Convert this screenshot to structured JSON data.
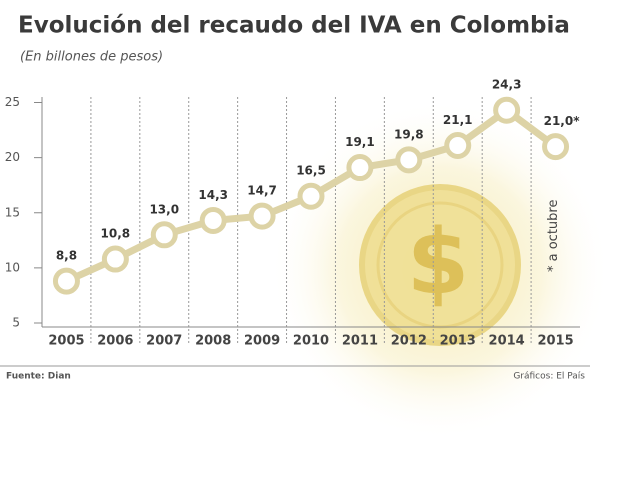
{
  "chart_data": {
    "type": "line",
    "title": "Evolución del recaudo del IVA en Colombia",
    "subtitle": "(En billones de pesos)",
    "categories": [
      "2005",
      "2006",
      "2007",
      "2008",
      "2009",
      "2010",
      "2011",
      "2012",
      "2013",
      "2014",
      "2015"
    ],
    "values": [
      8.8,
      10.8,
      13.0,
      14.3,
      14.7,
      16.5,
      19.1,
      19.8,
      21.1,
      24.3,
      21.0
    ],
    "value_labels": [
      "8,8",
      "10,8",
      "13,0",
      "14,3",
      "14,7",
      "16,5",
      "19,1",
      "19,8",
      "21,1",
      "24,3",
      "21,0*"
    ],
    "color": "#ddd3a6",
    "ylim": [
      5,
      25.5
    ],
    "yticks": [
      5,
      10,
      15,
      20,
      25
    ],
    "annotation": "* a octubre",
    "source": "Fuente: Dian",
    "credit": "Gráficos: El País"
  }
}
